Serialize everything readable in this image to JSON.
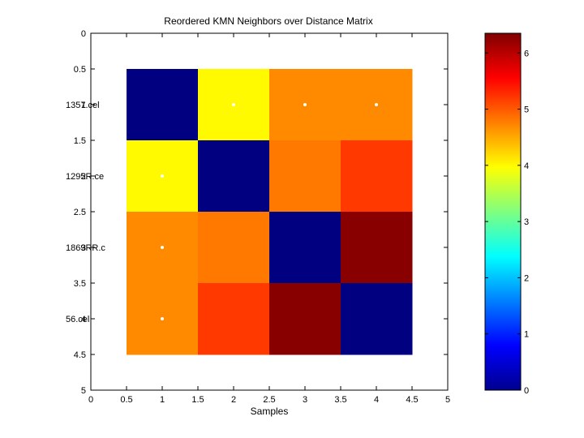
{
  "chart_data": [
    {
      "type": "heatmap",
      "title": "Reordered KMN Neighbors over Distance Matrix",
      "xlabel": "Samples",
      "ylabel": "",
      "xlim": [
        0,
        5
      ],
      "ylim": [
        0,
        5
      ],
      "xticks": [
        "0",
        "0.5",
        "1",
        "1.5",
        "2",
        "2.5",
        "3",
        "3.5",
        "4",
        "4.5",
        "5"
      ],
      "yticks": [
        "0",
        "0.5",
        "1",
        "1.5",
        "2",
        "2.5",
        "3",
        "3.5",
        "4",
        "4.5",
        "5"
      ],
      "row_labels": [
        "1357.cel",
        "1295R.ce",
        "1869RR.c",
        "56.cel"
      ],
      "values": [
        [
          0.0,
          4.0,
          4.7,
          4.7
        ],
        [
          4.0,
          0.0,
          4.8,
          5.2
        ],
        [
          4.7,
          4.8,
          0.0,
          6.3
        ],
        [
          4.7,
          5.2,
          6.3,
          0.0
        ]
      ],
      "markers": [
        {
          "row": 1,
          "col": 2
        },
        {
          "row": 1,
          "col": 3
        },
        {
          "row": 1,
          "col": 4
        },
        {
          "row": 2,
          "col": 1
        },
        {
          "row": 3,
          "col": 1
        },
        {
          "row": 4,
          "col": 1
        }
      ],
      "grid": false,
      "colormap": "jet"
    },
    {
      "type": "colorbar",
      "range": [
        0,
        6.35
      ],
      "ticks": [
        "0",
        "1",
        "2",
        "3",
        "4",
        "5",
        "6"
      ]
    }
  ]
}
